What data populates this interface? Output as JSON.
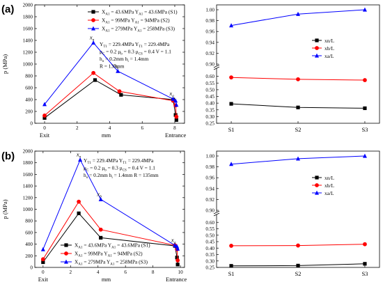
{
  "panels": [
    {
      "label": "(a)"
    },
    {
      "label": "(b)"
    }
  ],
  "chart_data": [
    {
      "id": "a-left",
      "type": "line",
      "ylabel": "p (MPa)",
      "xlabel": "mm",
      "ylim": [
        0,
        2000
      ],
      "yticks": [
        0,
        200,
        400,
        600,
        800,
        1000,
        1200,
        1400,
        1600,
        1800,
        2000
      ],
      "xlim": [
        -0.6,
        8.6
      ],
      "xticks": [
        0,
        2,
        4,
        6,
        8
      ],
      "xtick_labels": [
        "0",
        "2",
        "4",
        "6",
        "8"
      ],
      "x_extra_labels": [
        {
          "x": 0,
          "text": "Exit"
        },
        {
          "x": 8.05,
          "text": "Entrance"
        }
      ],
      "colors": {
        "S1": "#000000",
        "S2": "#ff0000",
        "S3": "#0000ff"
      },
      "series": [
        {
          "name": "X",
          "legend": {
            "a": "A1",
            "aval": "43.6MPa",
            "b": "A1",
            "bval": "43.6MPa",
            "tag": "(S1)"
          },
          "color": "#000000",
          "marker": "square",
          "x": [
            0,
            3.1,
            4.7,
            7.9,
            8.05,
            8.1
          ],
          "y": [
            90,
            730,
            480,
            400,
            140,
            55
          ]
        },
        {
          "name": "X",
          "legend": {
            "a": "A1",
            "aval": "99MPa",
            "b": "A1",
            "bval": "94MPa",
            "tag": "(S2)"
          },
          "color": "#ff0000",
          "marker": "circle",
          "x": [
            0,
            3.0,
            4.6,
            7.9,
            8.05,
            8.1
          ],
          "y": [
            130,
            850,
            540,
            380,
            300,
            110
          ]
        },
        {
          "name": "X",
          "legend": {
            "a": "A1",
            "aval": "279MPa",
            "b": "A1",
            "bval": "258MPa",
            "tag": "(S3)"
          },
          "color": "#0000ff",
          "marker": "triangle",
          "x": [
            0,
            3.0,
            4.5,
            7.9,
            8.05,
            8.1
          ],
          "y": [
            320,
            1360,
            880,
            410,
            380,
            310
          ]
        }
      ],
      "point_labels": [
        {
          "x": 3.0,
          "y": 1360,
          "text": "x",
          "sub": "n"
        },
        {
          "x": 4.5,
          "y": 880,
          "text": "x",
          "sub": "b"
        },
        {
          "x": 7.9,
          "y": 410,
          "text": "x",
          "sub": "a"
        }
      ],
      "params": [
        [
          "Y",
          "T1",
          " = 229.4MPa   Y",
          "T1",
          " = 229.4MPa"
        ],
        [
          "μ",
          "C",
          " = 0.2   μ",
          "b",
          " = 0.3   μ",
          "CS",
          " = 0.4   V = 1.1"
        ],
        [
          "h",
          "o",
          " = 0.2mm    h",
          "i",
          " = 1.4mm"
        ],
        [
          "R = 135mm"
        ]
      ]
    },
    {
      "id": "a-right",
      "type": "line",
      "categories": [
        "S1",
        "S2",
        "S3"
      ],
      "upper_ylim": [
        0.9,
        1.0
      ],
      "upper_yticks": [
        "0.90",
        "0.92",
        "0.94",
        "0.96",
        "0.98",
        "1.00"
      ],
      "lower_ylim": [
        0.25,
        0.65
      ],
      "lower_yticks": [
        "0.25",
        "0.30",
        "0.35",
        "0.40",
        "0.45",
        "0.50",
        "0.55",
        "0.60"
      ],
      "series": [
        {
          "name": "xn/L",
          "color": "#000000",
          "marker": "square",
          "values": [
            0.395,
            0.368,
            0.362
          ]
        },
        {
          "name": "xb/L",
          "color": "#ff0000",
          "marker": "circle",
          "values": [
            0.592,
            0.578,
            0.572
          ]
        },
        {
          "name": "xa/L",
          "color": "#0000ff",
          "marker": "triangle",
          "values": [
            0.971,
            0.992,
            1.0
          ]
        }
      ]
    },
    {
      "id": "b-left",
      "type": "line",
      "ylabel": "p (MPa)",
      "xlabel": "mm",
      "ylim": [
        0,
        2000
      ],
      "yticks": [
        0,
        200,
        400,
        600,
        800,
        1000,
        1200,
        1400,
        1600,
        1800,
        2000
      ],
      "xlim": [
        -0.6,
        10.3
      ],
      "xticks": [
        0,
        2,
        4,
        6,
        8,
        10
      ],
      "xtick_labels": [
        "0",
        "2",
        "4",
        "6",
        "8",
        "10"
      ],
      "x_extra_labels": [
        {
          "x": 0,
          "text": "Exit"
        },
        {
          "x": 9.7,
          "text": "Entrance"
        }
      ],
      "colors": {
        "S1": "#000000",
        "S2": "#ff0000",
        "S3": "#0000ff"
      },
      "series": [
        {
          "name": "X",
          "legend": {
            "a": "A1",
            "aval": "43.6MPa",
            "b": "A1",
            "bval": "43.6MPa",
            "tag": "(S1)"
          },
          "color": "#000000",
          "marker": "square",
          "x": [
            0,
            2.6,
            4.2,
            9.6,
            9.75,
            9.8
          ],
          "y": [
            90,
            930,
            510,
            370,
            170,
            50
          ]
        },
        {
          "name": "X",
          "legend": {
            "a": "A1",
            "aval": "99MPa",
            "b": "A1",
            "bval": "94MPa",
            "tag": "(S2)"
          },
          "color": "#ff0000",
          "marker": "circle",
          "x": [
            0,
            2.6,
            4.2,
            9.6,
            9.75,
            9.8
          ],
          "y": [
            140,
            1130,
            650,
            380,
            310,
            120
          ]
        },
        {
          "name": "X",
          "legend": {
            "a": "A1",
            "aval": "279MPa",
            "b": "A1",
            "bval": "258MPa",
            "tag": "(S3)"
          },
          "color": "#0000ff",
          "marker": "triangle",
          "x": [
            0,
            2.7,
            4.2,
            9.6,
            9.75,
            9.8
          ],
          "y": [
            310,
            1850,
            1170,
            380,
            360,
            320
          ]
        }
      ],
      "point_labels": [
        {
          "x": 2.7,
          "y": 1850,
          "text": "x",
          "sub": "n"
        },
        {
          "x": 4.2,
          "y": 1170,
          "text": "x",
          "sub": "b"
        },
        {
          "x": 9.6,
          "y": 380,
          "text": "x",
          "sub": "a"
        }
      ],
      "params": [
        [
          "Y",
          "T1",
          " = 229.4MPa    Y",
          "T1",
          " = 229.4MPa"
        ],
        [
          "μ",
          "C",
          " = 0.2   μ",
          "b",
          " = 0.3   μ",
          "CS",
          " = 0.4   V = 1.1"
        ],
        [
          "h",
          "o",
          " = 0.2mm   h",
          "i",
          " = 1.4mm  R = 135mm"
        ]
      ]
    },
    {
      "id": "b-right",
      "type": "line",
      "categories": [
        "S1",
        "S2",
        "S3"
      ],
      "upper_ylim": [
        0.9,
        1.0
      ],
      "upper_yticks": [
        "0.90",
        "0.92",
        "0.94",
        "0.96",
        "0.98",
        "1.00"
      ],
      "lower_ylim": [
        0.25,
        0.65
      ],
      "lower_yticks": [
        "0.25",
        "0.30",
        "0.35",
        "0.40",
        "0.45",
        "0.50",
        "0.55",
        "0.60"
      ],
      "series": [
        {
          "name": "xn/L",
          "color": "#000000",
          "marker": "square",
          "values": [
            0.262,
            0.264,
            0.278
          ]
        },
        {
          "name": "xb/L",
          "color": "#ff0000",
          "marker": "circle",
          "values": [
            0.418,
            0.42,
            0.43
          ]
        },
        {
          "name": "xa/L",
          "color": "#0000ff",
          "marker": "triangle",
          "values": [
            0.985,
            0.995,
            1.0
          ]
        }
      ]
    }
  ]
}
